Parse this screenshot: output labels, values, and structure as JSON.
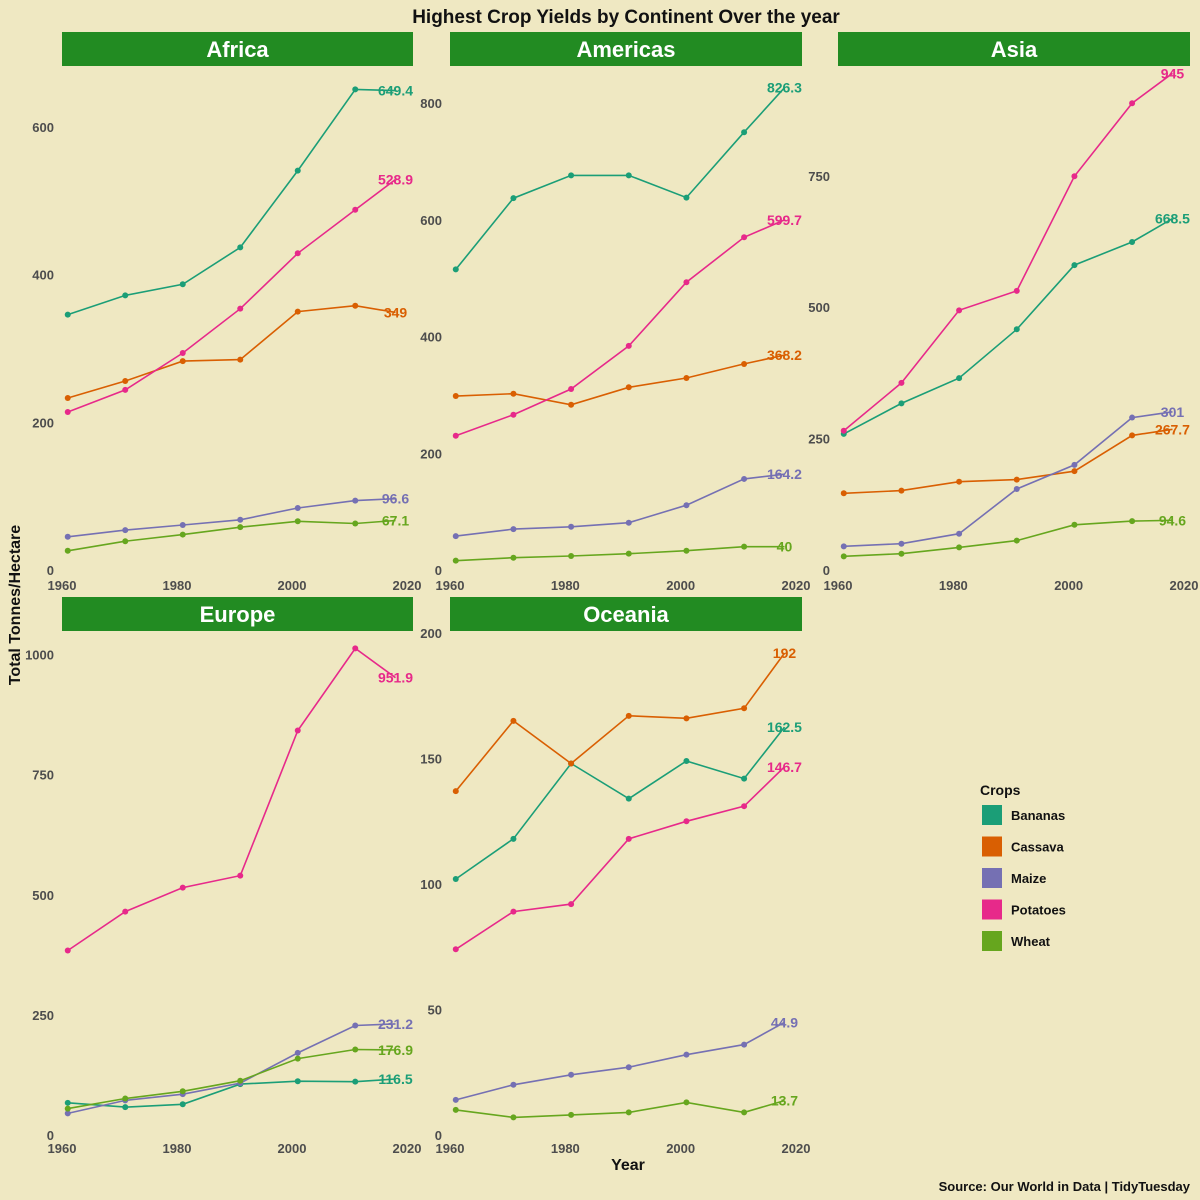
{
  "chart_data": {
    "type": "line",
    "title": "Highest Crop Yields by Continent Over the year",
    "xlabel": "Year",
    "ylabel": "Total Tonnes/Hectare",
    "caption": "Source: Our World in Data | TidyTuesday",
    "legend": {
      "title": "Crops",
      "position": "right",
      "items": [
        {
          "name": "Bananas",
          "color": "#1B9E77"
        },
        {
          "name": "Cassava",
          "color": "#D95F02"
        },
        {
          "name": "Maize",
          "color": "#7570B3"
        },
        {
          "name": "Potatoes",
          "color": "#E7298A"
        },
        {
          "name": "Wheat",
          "color": "#66A61E"
        }
      ]
    },
    "strip_color": "#228B22",
    "background": "#EFE8C2",
    "x": [
      1961,
      1971,
      1981,
      1991,
      2001,
      2011,
      2018
    ],
    "xlim": [
      1960,
      2020
    ],
    "xticks": [
      "1960",
      "1980",
      "2000",
      "2020"
    ],
    "panels": [
      {
        "name": "Africa",
        "ylim": [
          0,
          680
        ],
        "yticks": [
          "0",
          "200",
          "400",
          "600"
        ],
        "series": [
          {
            "name": "Bananas",
            "values": [
              346,
              372,
              387,
              437,
              541,
              651,
              649.4
            ],
            "end_label": "649.4"
          },
          {
            "name": "Cassava",
            "values": [
              233,
              256,
              283,
              285,
              350,
              358,
              349
            ],
            "end_label": "349"
          },
          {
            "name": "Maize",
            "values": [
              45,
              54,
              61,
              68,
              84,
              94,
              96.6
            ],
            "end_label": "96.6"
          },
          {
            "name": "Potatoes",
            "values": [
              214,
              244,
              294,
              354,
              429,
              488,
              528.9
            ],
            "end_label": "528.9"
          },
          {
            "name": "Wheat",
            "values": [
              26,
              39,
              48,
              58,
              66,
              63,
              67.1
            ],
            "end_label": "67.1"
          }
        ]
      },
      {
        "name": "Americas",
        "ylim": [
          0,
          860
        ],
        "yticks": [
          "0",
          "200",
          "400",
          "600",
          "800"
        ],
        "series": [
          {
            "name": "Bananas",
            "values": [
              515,
              637,
              676,
              676,
              638,
              750,
              826.3
            ],
            "end_label": "826.3"
          },
          {
            "name": "Cassava",
            "values": [
              298,
              302,
              283,
              313,
              329,
              353,
              368.2
            ],
            "end_label": "368.2"
          },
          {
            "name": "Maize",
            "values": [
              58,
              70,
              74,
              81,
              111,
              156,
              164.2
            ],
            "end_label": "164.2"
          },
          {
            "name": "Potatoes",
            "values": [
              230,
              266,
              310,
              384,
              493,
              570,
              599.7
            ],
            "end_label": "599.7"
          },
          {
            "name": "Wheat",
            "values": [
              16,
              21,
              24,
              28,
              33,
              40,
              40
            ],
            "end_label": "40"
          }
        ]
      },
      {
        "name": "Asia",
        "ylim": [
          0,
          955
        ],
        "yticks": [
          "0",
          "250",
          "500",
          "750"
        ],
        "series": [
          {
            "name": "Bananas",
            "values": [
              259,
              317,
              365,
              458,
              580,
              624,
              668.5
            ],
            "end_label": "668.5"
          },
          {
            "name": "Cassava",
            "values": [
              146,
              151,
              168,
              172,
              188,
              256,
              267.7
            ],
            "end_label": "267.7"
          },
          {
            "name": "Maize",
            "values": [
              45,
              50,
              69,
              154,
              200,
              290,
              301
            ],
            "end_label": "301"
          },
          {
            "name": "Potatoes",
            "values": [
              265,
              356,
              494,
              531,
              749,
              888,
              945
            ],
            "end_label": "945"
          },
          {
            "name": "Wheat",
            "values": [
              26,
              31,
              43,
              56,
              86,
              93,
              94.6
            ],
            "end_label": "94.6"
          }
        ]
      },
      {
        "name": "Europe",
        "ylim": [
          0,
          1045
        ],
        "yticks": [
          "0",
          "250",
          "500",
          "750",
          "1000"
        ],
        "series": [
          {
            "name": "Bananas",
            "values": [
              67,
              58,
              64,
              106,
              112,
              111,
              116.5
            ],
            "end_label": "116.5"
          },
          {
            "name": "Maize",
            "values": [
              45,
              72,
              85,
              108,
              171,
              228,
              231.2
            ],
            "end_label": "231.2"
          },
          {
            "name": "Potatoes",
            "values": [
              384,
              465,
              515,
              540,
              842,
              1013,
              951.9
            ],
            "end_label": "951.9"
          },
          {
            "name": "Wheat",
            "values": [
              55,
              76,
              91,
              113,
              159,
              178,
              176.9
            ],
            "end_label": "176.9"
          }
        ]
      },
      {
        "name": "Oceania",
        "ylim": [
          0,
          200
        ],
        "yticks": [
          "0",
          "50",
          "100",
          "150",
          "200"
        ],
        "series": [
          {
            "name": "Bananas",
            "values": [
              102,
              118,
              148,
              134,
              149,
              142,
              162.5
            ],
            "end_label": "162.5"
          },
          {
            "name": "Cassava",
            "values": [
              137,
              165,
              148,
              167,
              166,
              170,
              192
            ],
            "end_label": "192"
          },
          {
            "name": "Maize",
            "values": [
              14,
              20,
              24,
              27,
              32,
              36,
              44.9
            ],
            "end_label": "44.9"
          },
          {
            "name": "Potatoes",
            "values": [
              74,
              89,
              92,
              118,
              125,
              131,
              146.7
            ],
            "end_label": "146.7"
          },
          {
            "name": "Wheat",
            "values": [
              10,
              7,
              8,
              9,
              13,
              9,
              13.7
            ],
            "end_label": "13.7"
          }
        ]
      }
    ]
  }
}
